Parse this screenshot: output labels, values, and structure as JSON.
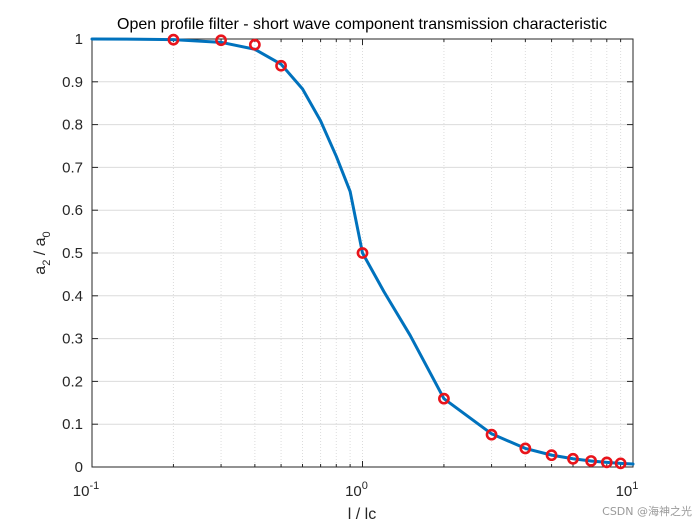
{
  "chart_data": {
    "type": "line",
    "title": "Open profile filter - short wave component transmission characteristic",
    "xlabel": "l / lc",
    "ylabel": {
      "base": "a",
      "sub1": "2",
      "sep": " / a",
      "sub2": "0"
    },
    "xscale": "log",
    "xlim": [
      0.1,
      10
    ],
    "ylim": [
      0,
      1
    ],
    "x_ticks": [
      {
        "base": "10",
        "exp": "-1"
      },
      {
        "base": "10",
        "exp": "0"
      },
      {
        "base": "10",
        "exp": "1"
      }
    ],
    "y_ticks": [
      "0",
      "0.1",
      "0.2",
      "0.3",
      "0.4",
      "0.5",
      "0.6",
      "0.7",
      "0.8",
      "0.9",
      "1"
    ],
    "grid": true,
    "minor_grid_x": true,
    "series": [
      {
        "style": "line",
        "color": "#0072BD",
        "x": [
          0.1,
          0.15,
          0.2,
          0.3,
          0.4,
          0.5,
          0.6,
          0.7,
          0.8,
          0.9,
          1.0,
          1.2,
          1.5,
          2,
          3,
          4,
          5,
          6,
          7,
          8,
          9,
          10
        ],
        "y": [
          1.0,
          0.9995,
          0.9984,
          0.9922,
          0.976,
          0.9412,
          0.8834,
          0.8086,
          0.7259,
          0.6439,
          0.5,
          0.4098,
          0.3077,
          0.1597,
          0.0776,
          0.0434,
          0.0277,
          0.0192,
          0.0141,
          0.0108,
          0.0085,
          0.0069
        ]
      },
      {
        "style": "markers",
        "color": "#E8141B",
        "x": [
          0.2,
          0.3,
          0.4,
          0.5,
          1,
          2,
          3,
          4,
          5,
          6,
          7,
          8,
          9
        ],
        "y": [
          0.9984,
          0.9971,
          0.9868,
          0.9375,
          0.5,
          0.1597,
          0.0756,
          0.0434,
          0.0277,
          0.0192,
          0.0141,
          0.0108,
          0.0085
        ]
      }
    ]
  },
  "watermark": "CSDN @海神之光",
  "colors": {
    "grid": "#dcdcdc",
    "axis": "#262626"
  }
}
